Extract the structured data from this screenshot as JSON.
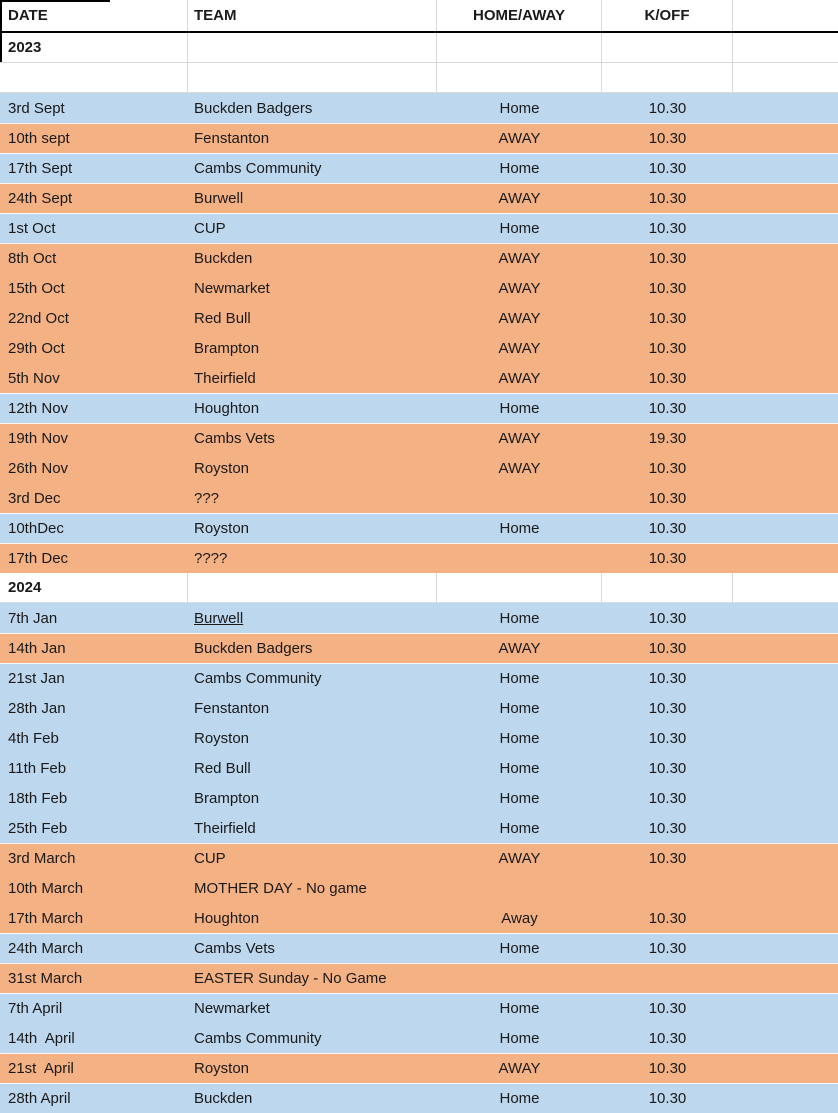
{
  "table": {
    "columns": [
      {
        "label": "DATE"
      },
      {
        "label": "TEAM"
      },
      {
        "label": "HOME/AWAY"
      },
      {
        "label": "K/OFF"
      },
      {
        "label": ""
      }
    ],
    "colors": {
      "blue_row": "#BDD7EE",
      "orange_row": "#F4B183",
      "gridline": "#D9D9D9",
      "header_border": "#000000"
    },
    "rows": [
      {
        "type": "year",
        "date": "2023"
      },
      {
        "type": "blank"
      },
      {
        "type": "fixture",
        "color": "blue",
        "date": "3rd Sept",
        "team": "Buckden Badgers",
        "homeaway": "Home",
        "koff": "10.30"
      },
      {
        "type": "fixture",
        "color": "orange",
        "date": "10th sept",
        "team": "Fenstanton",
        "homeaway": "AWAY",
        "koff": "10.30"
      },
      {
        "type": "fixture",
        "color": "blue",
        "date": "17th Sept",
        "team": "Cambs Community",
        "homeaway": "Home",
        "koff": "10.30"
      },
      {
        "type": "fixture",
        "color": "orange",
        "date": "24th Sept",
        "team": "Burwell",
        "homeaway": "AWAY",
        "koff": "10.30"
      },
      {
        "type": "fixture",
        "color": "blue",
        "date": "1st Oct",
        "team": "CUP",
        "homeaway": "Home",
        "koff": "10.30"
      },
      {
        "type": "fixture",
        "color": "orange",
        "date": "8th Oct",
        "team": "Buckden",
        "homeaway": "AWAY",
        "koff": "10.30"
      },
      {
        "type": "fixture",
        "color": "orange",
        "date": "15th Oct",
        "team": "Newmarket",
        "homeaway": "AWAY",
        "koff": "10.30"
      },
      {
        "type": "fixture",
        "color": "orange",
        "date": "22nd Oct",
        "team": "Red Bull",
        "homeaway": "AWAY",
        "koff": "10.30"
      },
      {
        "type": "fixture",
        "color": "orange",
        "date": "29th Oct",
        "team": "Brampton",
        "homeaway": "AWAY",
        "koff": "10.30"
      },
      {
        "type": "fixture",
        "color": "orange",
        "date": "5th Nov",
        "team": "Theirfield",
        "homeaway": "AWAY",
        "koff": "10.30"
      },
      {
        "type": "fixture",
        "color": "blue",
        "date": "12th Nov",
        "team": "Houghton",
        "homeaway": "Home",
        "koff": "10.30"
      },
      {
        "type": "fixture",
        "color": "orange",
        "date": "19th Nov",
        "team": "Cambs Vets",
        "homeaway": "AWAY",
        "koff": "19.30"
      },
      {
        "type": "fixture",
        "color": "orange",
        "date": "26th Nov",
        "team": "Royston",
        "homeaway": "AWAY",
        "koff": "10.30"
      },
      {
        "type": "fixture",
        "color": "orange",
        "date": "3rd Dec",
        "team": "???",
        "homeaway": "",
        "koff": "10.30"
      },
      {
        "type": "fixture",
        "color": "blue",
        "date": "10thDec",
        "team": "Royston",
        "homeaway": "Home",
        "koff": "10.30"
      },
      {
        "type": "fixture",
        "color": "orange",
        "date": "17th Dec",
        "team": "????",
        "homeaway": "",
        "koff": "10.30"
      },
      {
        "type": "year",
        "date": "2024"
      },
      {
        "type": "fixture",
        "color": "blue",
        "date": "7th Jan",
        "team": "Burwell",
        "team_underline": true,
        "homeaway": "Home",
        "koff": "10.30"
      },
      {
        "type": "fixture",
        "color": "orange",
        "date": "14th Jan",
        "team": "Buckden Badgers",
        "homeaway": "AWAY",
        "koff": "10.30"
      },
      {
        "type": "fixture",
        "color": "blue",
        "date": "21st Jan",
        "team": "Cambs Community",
        "homeaway": "Home",
        "koff": "10.30"
      },
      {
        "type": "fixture",
        "color": "blue",
        "date": "28th Jan",
        "team": "Fenstanton",
        "homeaway": "Home",
        "koff": "10.30"
      },
      {
        "type": "fixture",
        "color": "blue",
        "date": "4th Feb",
        "team": "Royston",
        "homeaway": "Home",
        "koff": "10.30"
      },
      {
        "type": "fixture",
        "color": "blue",
        "date": "11th Feb",
        "team": "Red Bull",
        "homeaway": "Home",
        "koff": "10.30"
      },
      {
        "type": "fixture",
        "color": "blue",
        "date": "18th Feb",
        "team": "Brampton",
        "homeaway": "Home",
        "koff": "10.30"
      },
      {
        "type": "fixture",
        "color": "blue",
        "date": "25th Feb",
        "team": "Theirfield",
        "homeaway": "Home",
        "koff": "10.30"
      },
      {
        "type": "fixture",
        "color": "orange",
        "date": "3rd March",
        "team": "CUP",
        "homeaway": "AWAY",
        "koff": "10.30"
      },
      {
        "type": "fixture",
        "color": "orange",
        "date": "10th March",
        "team": "MOTHER DAY - No game",
        "homeaway": "",
        "koff": ""
      },
      {
        "type": "fixture",
        "color": "orange",
        "date": "17th March",
        "team": "Houghton",
        "homeaway": "Away",
        "koff": "10.30"
      },
      {
        "type": "fixture",
        "color": "blue",
        "date": "24th March",
        "team": "Cambs Vets",
        "homeaway": "Home",
        "koff": "10.30"
      },
      {
        "type": "fixture",
        "color": "orange",
        "date": "31st March",
        "team": "EASTER Sunday - No Game",
        "homeaway": "",
        "koff": ""
      },
      {
        "type": "fixture",
        "color": "blue",
        "date": "7th April",
        "team": "Newmarket",
        "homeaway": "Home",
        "koff": "10.30"
      },
      {
        "type": "fixture",
        "color": "blue",
        "date": "14th  April",
        "team": "Cambs Community",
        "homeaway": "Home",
        "koff": "10.30"
      },
      {
        "type": "fixture",
        "color": "orange",
        "date": "21st  April",
        "team": "Royston",
        "homeaway": "AWAY",
        "koff": "10.30"
      },
      {
        "type": "fixture",
        "color": "blue",
        "date": "28th April",
        "team": "Buckden",
        "homeaway": "Home",
        "koff": "10.30"
      }
    ]
  }
}
